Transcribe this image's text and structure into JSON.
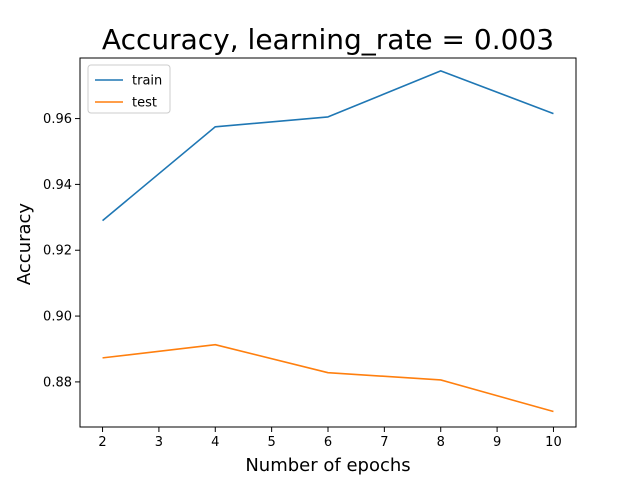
{
  "chart_data": {
    "type": "line",
    "title": "Accuracy, learning_rate = 0.003",
    "xlabel": "Number of epochs",
    "ylabel": "Accuracy",
    "x": [
      2,
      4,
      6,
      8,
      10
    ],
    "xticks": [
      "2",
      "3",
      "4",
      "5",
      "6",
      "7",
      "8",
      "9",
      "10"
    ],
    "yticks": [
      "0.88",
      "0.90",
      "0.92",
      "0.94",
      "0.96"
    ],
    "xlim": [
      1.6,
      10.4
    ],
    "ylim": [
      0.8663,
      0.9784
    ],
    "grid": false,
    "legend_position": "top-left",
    "series": [
      {
        "name": "train",
        "color": "#1f77b4",
        "values": [
          0.929,
          0.9575,
          0.9605,
          0.9745,
          0.9615
        ]
      },
      {
        "name": "test",
        "color": "#ff7f0e",
        "values": [
          0.8873,
          0.8913,
          0.8828,
          0.8806,
          0.871
        ]
      }
    ]
  }
}
